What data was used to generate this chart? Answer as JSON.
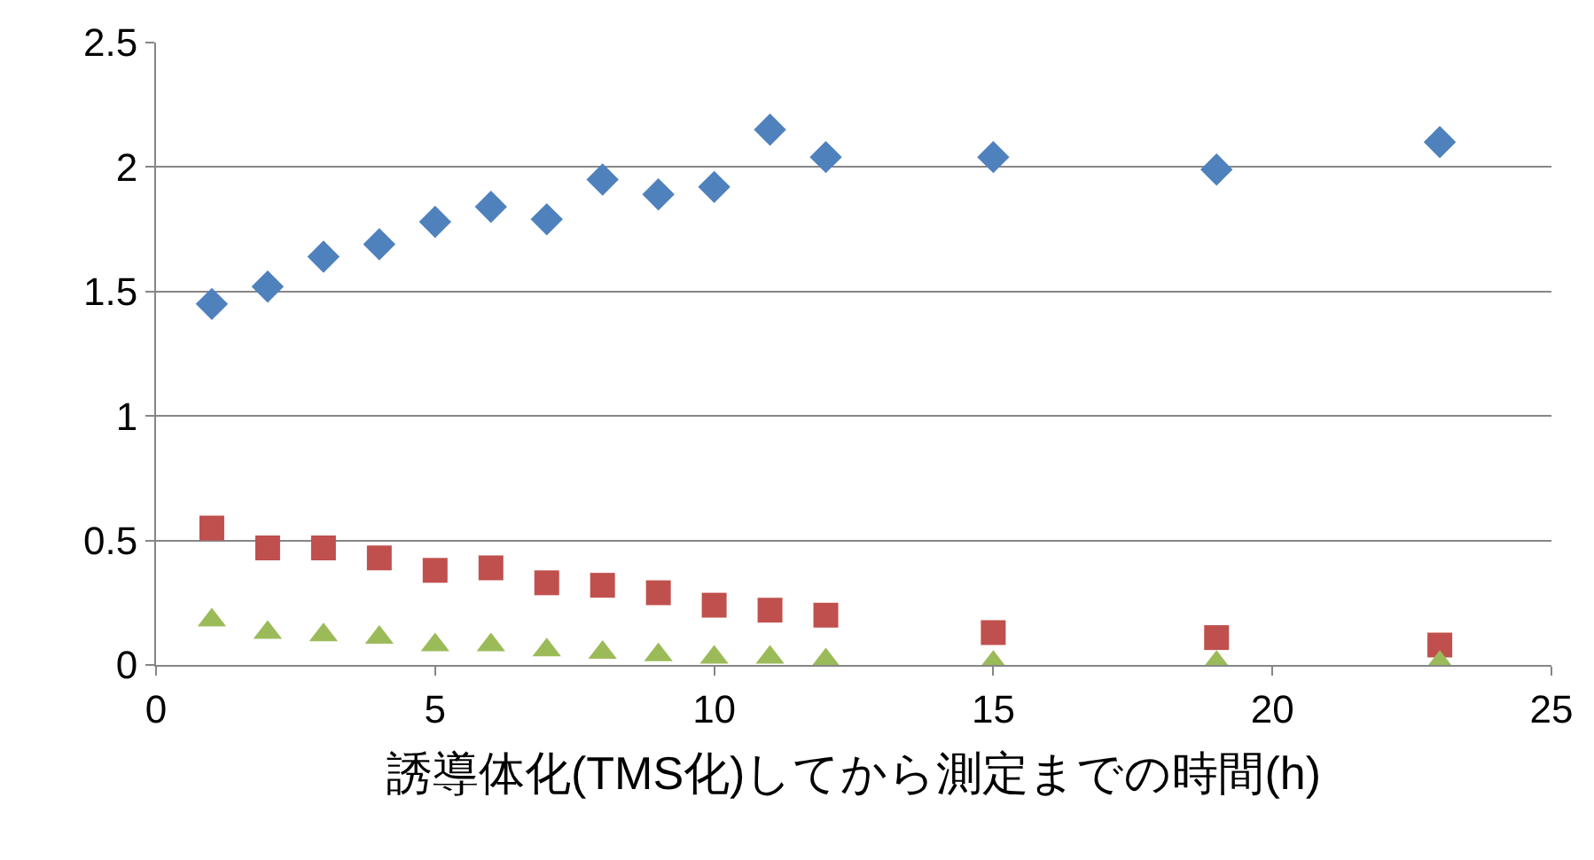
{
  "chart_data": {
    "type": "scatter",
    "xlabel": "誘導体化(TMS化)してから測定までの時間(h)",
    "x": [
      1,
      2,
      3,
      4,
      5,
      6,
      7,
      8,
      9,
      10,
      11,
      12,
      15,
      19,
      23
    ],
    "series": [
      {
        "color": "#4f81bd",
        "marker": "diamond",
        "values": [
          1.45,
          1.52,
          1.64,
          1.69,
          1.78,
          1.84,
          1.79,
          1.95,
          1.89,
          1.92,
          2.15,
          2.04,
          2.04,
          1.99,
          2.1
        ]
      },
      {
        "color": "#c0504d",
        "marker": "square",
        "values": [
          0.55,
          0.47,
          0.47,
          0.43,
          0.38,
          0.39,
          0.33,
          0.32,
          0.29,
          0.24,
          0.22,
          0.2,
          0.13,
          0.11,
          0.08
        ]
      },
      {
        "color": "#9bbb59",
        "marker": "triangle",
        "values": [
          0.18,
          0.13,
          0.12,
          0.11,
          0.08,
          0.08,
          0.06,
          0.05,
          0.04,
          0.03,
          0.03,
          0.02,
          0.01,
          0.01,
          0.01
        ]
      }
    ],
    "xlim": [
      0,
      25
    ],
    "xticks": [
      0,
      5,
      10,
      15,
      20,
      25
    ],
    "ylim": [
      0,
      2.5
    ],
    "yticks": [
      0,
      0.5,
      1,
      1.5,
      2,
      2.5
    ],
    "grid": "y",
    "legend": false
  }
}
